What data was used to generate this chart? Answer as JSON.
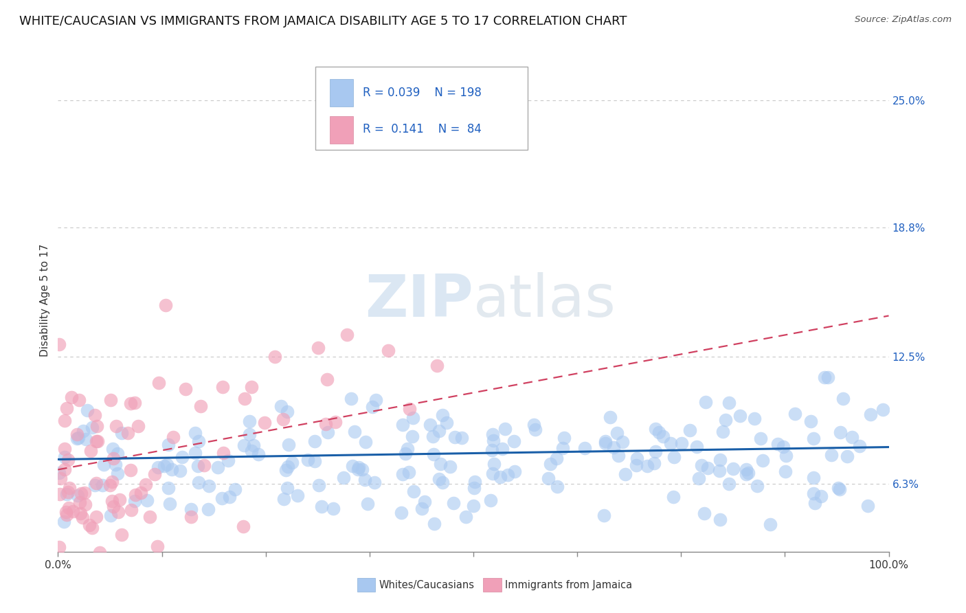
{
  "title": "WHITE/CAUCASIAN VS IMMIGRANTS FROM JAMAICA DISABILITY AGE 5 TO 17 CORRELATION CHART",
  "source": "Source: ZipAtlas.com",
  "ylabel": "Disability Age 5 to 17",
  "watermark": "ZIPatlas",
  "xlim": [
    0,
    100
  ],
  "ylim": [
    3.0,
    27.5
  ],
  "yticks": [
    6.3,
    12.5,
    18.8,
    25.0
  ],
  "ytick_labels": [
    "6.3%",
    "12.5%",
    "18.8%",
    "25.0%"
  ],
  "xticks": [
    0,
    12.5,
    25,
    37.5,
    50,
    62.5,
    75,
    87.5,
    100
  ],
  "xtick_labels": [
    "0.0%",
    "",
    "",
    "",
    "",
    "",
    "",
    "",
    "100.0%"
  ],
  "group1_scatter_color": "#a8c8f0",
  "group1_line_color": "#1a5fa8",
  "group2_scatter_color": "#f0a0b8",
  "group2_line_color": "#d04060",
  "R1": 0.039,
  "N1": 198,
  "R2": 0.141,
  "N2": 84,
  "legend_labels": [
    "Whites/Caucasians",
    "Immigrants from Jamaica"
  ],
  "grid_color": "#c8c8c8",
  "background_color": "#ffffff",
  "title_fontsize": 13,
  "axis_label_fontsize": 11,
  "tick_fontsize": 11,
  "value_color": "#2060c0",
  "seed": 7
}
